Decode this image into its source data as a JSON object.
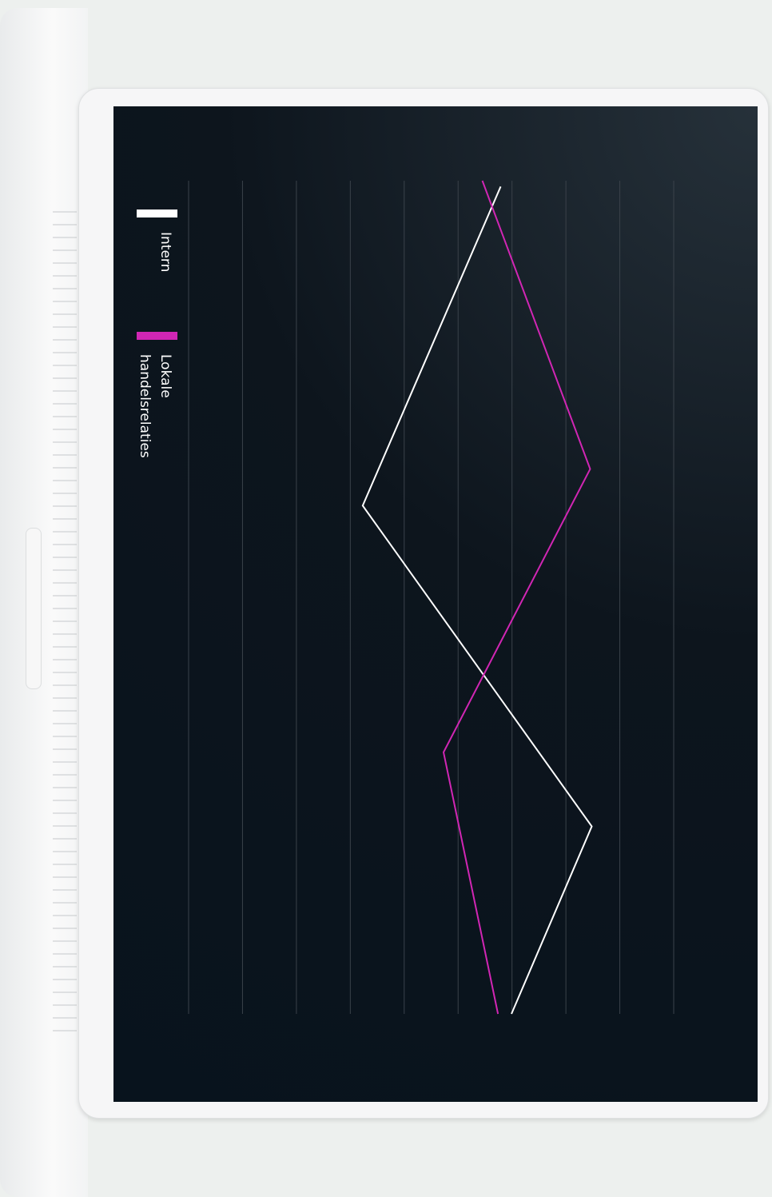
{
  "chart_data": {
    "type": "line",
    "series": [
      {
        "name": "Intern",
        "color": "#ffffff",
        "x": [
          0.7,
          39,
          77.5,
          100
        ],
        "values": [
          5.79,
          3.23,
          7.48,
          5.99
        ]
      },
      {
        "name": "Lokale handelsrelaties",
        "color": "#d126b4",
        "x": [
          0,
          34.6,
          68.6,
          100
        ],
        "values": [
          5.45,
          7.45,
          4.73,
          5.74
        ]
      }
    ],
    "xlim": [
      0,
      100
    ],
    "ylim": [
      0,
      9
    ],
    "yticks": [
      0,
      1,
      2,
      3,
      4,
      5,
      6,
      7,
      8,
      9
    ],
    "grid": true
  }
}
